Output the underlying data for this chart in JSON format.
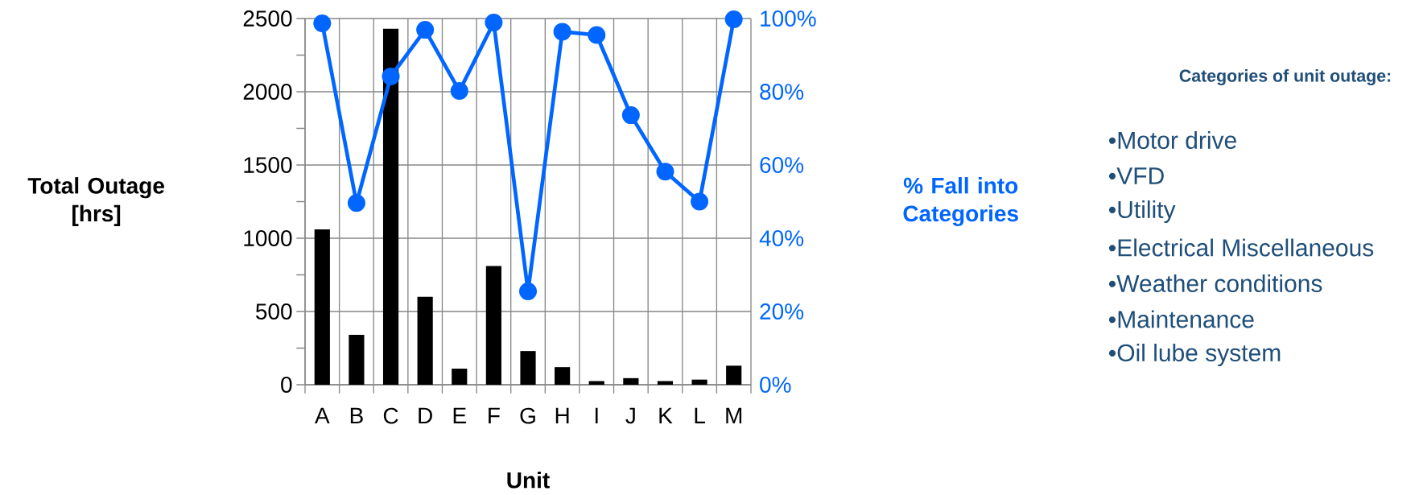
{
  "chart_data": {
    "type": "bar",
    "xlabel": "Unit",
    "ylabel": "Total Outage [hrs]",
    "y2label": "% Fall into Categories",
    "categories": [
      "A",
      "B",
      "C",
      "D",
      "E",
      "F",
      "G",
      "H",
      "I",
      "J",
      "K",
      "L",
      "M"
    ],
    "series": [
      {
        "color": "#000000",
        "values": [
          1060,
          340,
          2430,
          600,
          110,
          810,
          230,
          120,
          25,
          45,
          25,
          35,
          130
        ]
      },
      {
        "type": "line",
        "axis": "y2",
        "color": "#0066ff",
        "values": [
          98.7,
          49.6,
          84.2,
          96.9,
          80.2,
          98.9,
          25.5,
          96.4,
          95.5,
          73.6,
          58.2,
          50.0,
          99.8
        ]
      }
    ],
    "ylim": [
      0,
      2500
    ],
    "yticks": [
      0,
      {
        "value": 250,
        "label": null
      },
      500,
      {
        "value": 750,
        "label": null
      },
      1000,
      {
        "value": 1250,
        "label": null
      },
      1500,
      {
        "value": 1750,
        "label": null
      },
      2000,
      {
        "value": 2250,
        "label": null
      },
      2500
    ],
    "y2lim": [
      0,
      100
    ],
    "y2ticks": [
      {
        "value": 0,
        "label": "0%"
      },
      {
        "value": 20,
        "label": "20%"
      },
      {
        "value": 40,
        "label": "40%"
      },
      {
        "value": 60,
        "label": "60%"
      },
      {
        "value": 80,
        "label": "80%"
      },
      {
        "value": 100,
        "label": "100%"
      }
    ],
    "grid": true,
    "marker": "circle",
    "line_style": "solid",
    "annotations": [
      "Categories of unit outage:",
      "•Motor drive",
      "•VFD",
      "•Utility",
      "•Electrical Miscellaneous",
      "•Weather conditions",
      "•Maintenance",
      "•Oil lube system"
    ]
  }
}
